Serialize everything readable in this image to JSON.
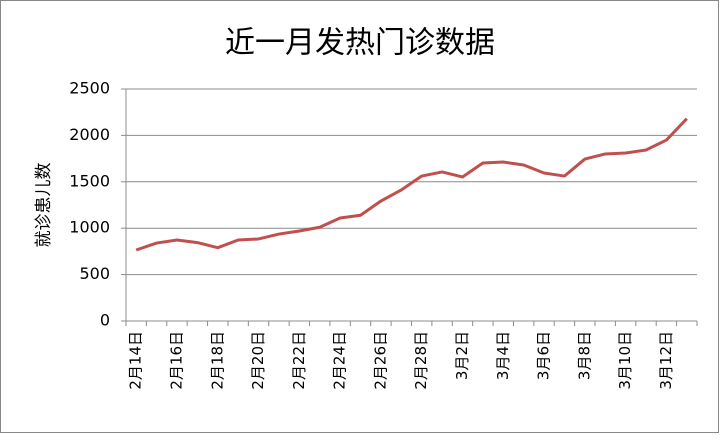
{
  "chart_data": {
    "type": "line",
    "title": "近一月发热门诊数据",
    "y_label": "就诊患儿数",
    "categories": [
      "2月14日",
      null,
      "2月16日",
      null,
      "2月18日",
      null,
      "2月20日",
      null,
      "2月22日",
      null,
      "2月24日",
      null,
      "2月26日",
      null,
      "2月28日",
      null,
      "3月2日",
      null,
      "3月4日",
      null,
      "3月6日",
      null,
      "3月8日",
      null,
      "3月10日",
      null,
      "3月12日",
      null
    ],
    "series": [
      {
        "name": "就诊患儿数",
        "color": "#c0504d",
        "values": [
          765,
          840,
          873,
          845,
          790,
          873,
          884,
          937,
          970,
          1010,
          1110,
          1140,
          1293,
          1412,
          1562,
          1606,
          1552,
          1703,
          1713,
          1681,
          1595,
          1562,
          1745,
          1800,
          1810,
          1843,
          1950,
          2180
        ]
      }
    ],
    "ylim": [
      0,
      2500
    ],
    "yticks": [
      0,
      500,
      1000,
      1500,
      2000,
      2500
    ],
    "grid": true
  }
}
